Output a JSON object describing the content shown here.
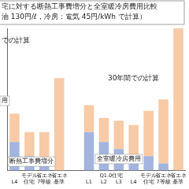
{
  "chart_data": {
    "type": "bar",
    "title": "宅に対する断熱工事費増分と全室暖冷房費用比較",
    "subtitle": "油 130円/ℓ，冷房：電気 45円/kWh で計算）",
    "categories": [
      "L4",
      "モデル 住宅",
      "省エネ 7等級",
      "省エネ 基準",
      null,
      "L1",
      "L2",
      "L3",
      "L4",
      "モデル 住宅",
      "省エネ 7等級",
      "省エネ 基準"
    ],
    "series": [
      {
        "name": "断熱工事費増分",
        "color": "#a3b5de",
        "values": [
          20,
          10,
          5,
          0,
          null,
          27,
          20,
          15,
          10,
          10,
          5,
          0
        ]
      },
      {
        "name": "全室暖冷房費用",
        "color": "#f8caa5",
        "values": [
          20,
          17,
          22,
          65,
          null,
          19,
          17,
          20,
          22,
          32,
          45,
          100
        ]
      }
    ],
    "annotations": [
      "での計算",
      "30年間での計算",
      "用",
      "Q1.0住宅"
    ],
    "stacked": true,
    "ylim": [
      0,
      100
    ],
    "grid": false,
    "tick_labels": "x"
  }
}
